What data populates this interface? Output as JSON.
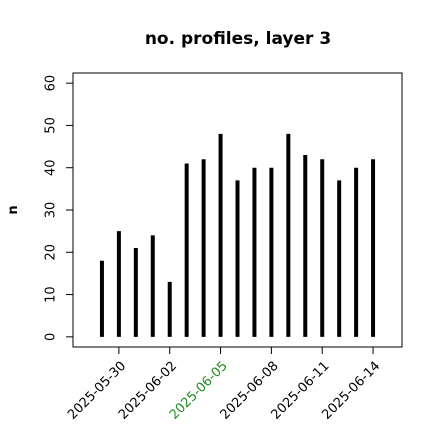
{
  "chart_data": {
    "type": "line_h",
    "title": "no. profiles, layer 3",
    "y_label": "n",
    "x": [
      "2025-05-29",
      "2025-05-30",
      "2025-05-31",
      "2025-06-01",
      "2025-06-02",
      "2025-06-03",
      "2025-06-04",
      "2025-06-05",
      "2025-06-06",
      "2025-06-07",
      "2025-06-08",
      "2025-06-09",
      "2025-06-10",
      "2025-06-11",
      "2025-06-12",
      "2025-06-13",
      "2025-06-14"
    ],
    "values": [
      18,
      25,
      21,
      24,
      13,
      41,
      42,
      48,
      37,
      40,
      40,
      48,
      43,
      42,
      37,
      40,
      42
    ],
    "color": "#000000",
    "xlim": [
      "2025-05-27T07:00Z",
      "2025-06-15T17:00Z"
    ],
    "xticks": [
      "2025-05-30",
      "2025-06-02",
      "2025-06-05",
      "2025-06-08",
      "2025-06-11",
      "2025-06-14"
    ],
    "xtick_label_colors": [
      "#000000",
      "#000000",
      "#228B22",
      "#000000",
      "#000000",
      "#000000"
    ],
    "ylim": [
      -2.4,
      62.4
    ],
    "yticks": [
      0,
      10,
      20,
      30,
      40,
      50,
      60
    ]
  }
}
